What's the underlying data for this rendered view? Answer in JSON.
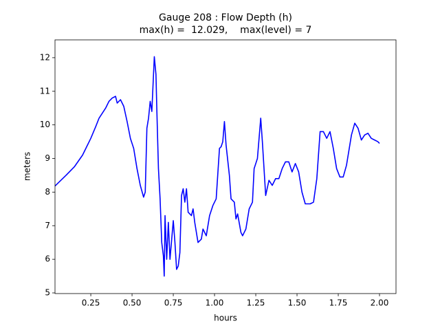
{
  "chart_data": {
    "type": "line",
    "title": "Gauge 208 : Flow Depth (h)",
    "subtitle": "max(h) =  12.029,    max(level) = 7",
    "x_label": "hours",
    "y_label": "meters",
    "xlim": [
      0.033,
      2.1
    ],
    "ylim": [
      4.98,
      12.53
    ],
    "xticks": [
      0.25,
      {
        "value": 0.5,
        "label": "0.50"
      },
      0.75,
      {
        "value": 1.0,
        "label": "1.00"
      },
      1.25,
      {
        "value": 1.5,
        "label": "1.50"
      },
      1.75,
      {
        "value": 2.0,
        "label": "2.00"
      }
    ],
    "yticks": [
      5,
      6,
      7,
      8,
      9,
      10,
      11,
      12
    ],
    "grid": false,
    "series": [
      {
        "color": "#0000ff",
        "x": [
          0.033,
          0.1,
          0.15,
          0.2,
          0.22,
          0.25,
          0.28,
          0.3,
          0.32,
          0.34,
          0.36,
          0.38,
          0.4,
          0.41,
          0.43,
          0.45,
          0.47,
          0.49,
          0.51,
          0.53,
          0.55,
          0.57,
          0.58,
          0.59,
          0.6,
          0.61,
          0.62,
          0.635,
          0.645,
          0.65,
          0.66,
          0.67,
          0.68,
          0.69,
          0.695,
          0.7,
          0.71,
          0.72,
          0.73,
          0.75,
          0.76,
          0.77,
          0.78,
          0.79,
          0.8,
          0.81,
          0.82,
          0.83,
          0.84,
          0.86,
          0.87,
          0.88,
          0.9,
          0.92,
          0.93,
          0.95,
          0.97,
          0.99,
          1.01,
          1.03,
          1.04,
          1.05,
          1.06,
          1.07,
          1.09,
          1.1,
          1.12,
          1.13,
          1.14,
          1.16,
          1.17,
          1.19,
          1.21,
          1.23,
          1.24,
          1.26,
          1.28,
          1.29,
          1.31,
          1.33,
          1.35,
          1.37,
          1.39,
          1.41,
          1.43,
          1.45,
          1.47,
          1.49,
          1.51,
          1.53,
          1.55,
          1.58,
          1.6,
          1.62,
          1.64,
          1.66,
          1.68,
          1.7,
          1.72,
          1.74,
          1.76,
          1.78,
          1.8,
          1.83,
          1.85,
          1.87,
          1.89,
          1.91,
          1.93,
          1.95,
          1.97,
          1.99,
          2.0
        ],
        "values": [
          8.18,
          8.5,
          8.75,
          9.1,
          9.3,
          9.6,
          9.95,
          10.2,
          10.35,
          10.5,
          10.7,
          10.8,
          10.85,
          10.65,
          10.75,
          10.55,
          10.1,
          9.6,
          9.3,
          8.7,
          8.2,
          7.85,
          8.0,
          9.9,
          10.2,
          10.7,
          10.4,
          12.03,
          11.5,
          10.5,
          8.7,
          7.8,
          6.5,
          6.1,
          5.5,
          7.3,
          6.0,
          7.1,
          6.0,
          7.15,
          6.5,
          5.7,
          5.8,
          6.2,
          7.9,
          8.1,
          7.7,
          8.1,
          7.4,
          7.3,
          7.5,
          7.1,
          6.5,
          6.6,
          6.9,
          6.7,
          7.3,
          7.6,
          7.8,
          9.3,
          9.35,
          9.5,
          10.1,
          9.4,
          8.5,
          7.8,
          7.7,
          7.2,
          7.35,
          6.8,
          6.7,
          6.9,
          7.5,
          7.7,
          8.7,
          9.0,
          10.2,
          9.5,
          7.9,
          8.35,
          8.2,
          8.4,
          8.4,
          8.7,
          8.9,
          8.9,
          8.6,
          8.85,
          8.6,
          8.0,
          7.65,
          7.65,
          7.7,
          8.4,
          9.8,
          9.8,
          9.6,
          9.8,
          9.3,
          8.7,
          8.45,
          8.45,
          8.8,
          9.7,
          10.05,
          9.9,
          9.55,
          9.7,
          9.75,
          9.6,
          9.55,
          9.5,
          9.45
        ]
      }
    ]
  }
}
